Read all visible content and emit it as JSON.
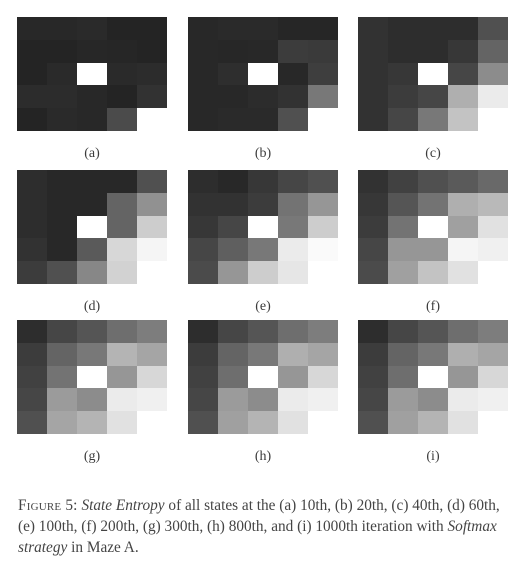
{
  "figure": {
    "panels": [
      {
        "label": "(a)",
        "cells": [
          [
            40,
            40,
            42,
            36,
            36
          ],
          [
            36,
            36,
            39,
            38,
            36
          ],
          [
            36,
            42,
            255,
            42,
            44
          ],
          [
            44,
            44,
            40,
            36,
            50
          ],
          [
            36,
            42,
            40,
            75,
            255
          ]
        ]
      },
      {
        "label": "(b)",
        "cells": [
          [
            40,
            42,
            42,
            38,
            38
          ],
          [
            40,
            39,
            40,
            60,
            58
          ],
          [
            40,
            46,
            255,
            40,
            62
          ],
          [
            40,
            40,
            44,
            50,
            120
          ],
          [
            40,
            42,
            42,
            80,
            255
          ]
        ]
      },
      {
        "label": "(c)",
        "cells": [
          [
            50,
            45,
            45,
            45,
            80
          ],
          [
            50,
            45,
            45,
            55,
            100
          ],
          [
            50,
            55,
            255,
            70,
            140
          ],
          [
            50,
            60,
            70,
            175,
            235
          ],
          [
            50,
            70,
            120,
            195,
            255
          ]
        ]
      },
      {
        "label": "(d)",
        "cells": [
          [
            45,
            40,
            40,
            40,
            80
          ],
          [
            45,
            40,
            40,
            100,
            145
          ],
          [
            45,
            40,
            255,
            100,
            205
          ],
          [
            50,
            40,
            90,
            215,
            245
          ],
          [
            60,
            80,
            135,
            210,
            255
          ]
        ]
      },
      {
        "label": "(e)",
        "cells": [
          [
            45,
            40,
            55,
            70,
            80
          ],
          [
            50,
            50,
            60,
            115,
            150
          ],
          [
            55,
            70,
            255,
            120,
            205
          ],
          [
            70,
            95,
            120,
            235,
            250
          ],
          [
            75,
            150,
            205,
            230,
            255
          ]
        ]
      },
      {
        "label": "(f)",
        "cells": [
          [
            50,
            65,
            80,
            90,
            105
          ],
          [
            55,
            85,
            115,
            175,
            185
          ],
          [
            60,
            115,
            255,
            160,
            225
          ],
          [
            70,
            150,
            150,
            245,
            240
          ],
          [
            75,
            160,
            195,
            225,
            255
          ]
        ]
      },
      {
        "label": "(g)",
        "cells": [
          [
            45,
            70,
            85,
            110,
            125
          ],
          [
            60,
            100,
            120,
            180,
            165
          ],
          [
            65,
            115,
            255,
            150,
            215
          ],
          [
            70,
            155,
            140,
            235,
            240
          ],
          [
            80,
            165,
            180,
            225,
            255
          ]
        ]
      },
      {
        "label": "(h)",
        "cells": [
          [
            45,
            70,
            85,
            110,
            125
          ],
          [
            60,
            100,
            120,
            175,
            165
          ],
          [
            65,
            110,
            255,
            150,
            215
          ],
          [
            70,
            155,
            140,
            235,
            240
          ],
          [
            80,
            160,
            180,
            225,
            255
          ]
        ]
      },
      {
        "label": "(i)",
        "cells": [
          [
            45,
            70,
            85,
            110,
            125
          ],
          [
            60,
            100,
            120,
            175,
            165
          ],
          [
            65,
            110,
            255,
            150,
            215
          ],
          [
            70,
            155,
            140,
            235,
            240
          ],
          [
            80,
            160,
            180,
            225,
            255
          ]
        ]
      }
    ]
  },
  "caption": {
    "label": "Figure 5:",
    "title": "State Entropy",
    "text1": " of all states at the (a) 10th, (b) 20th, (c) 40th, (d) 60th, (e) 100th, (f) 200th, (g) 300th, (h) 800th, and (i) 1000th iteration with ",
    "strategy": "Softmax strategy",
    "text2": " in Maze A."
  }
}
